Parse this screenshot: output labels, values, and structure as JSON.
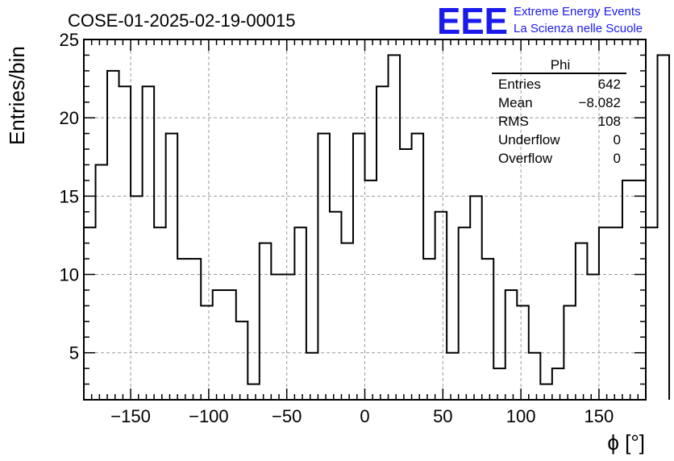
{
  "run_title": "COSE-01-2025-02-19-00015",
  "logo": {
    "mark": "EEE",
    "line1": "Extreme Energy Events",
    "line2": "La Scienza nelle Scuole",
    "color": "#1a1aee"
  },
  "stats_box": {
    "name": "Phi",
    "rows": [
      {
        "label": "Entries",
        "value": "642"
      },
      {
        "label": "Mean",
        "value": "−8.082"
      },
      {
        "label": "RMS",
        "value": "108"
      },
      {
        "label": "Underflow",
        "value": "0"
      },
      {
        "label": "Overflow",
        "value": "0"
      }
    ]
  },
  "chart_data": {
    "type": "bar",
    "style": "step-histogram",
    "xlabel": "ϕ [°]",
    "ylabel": "Entries/bin",
    "xlim": [
      -180,
      180
    ],
    "ylim": [
      2,
      25
    ],
    "xticks": [
      -150,
      -100,
      -50,
      0,
      50,
      100,
      150
    ],
    "yticks": [
      5,
      10,
      15,
      20,
      25
    ],
    "grid": true,
    "bin_width": 7.5,
    "bin_edges_start": -180,
    "values": [
      13,
      17,
      23,
      22,
      15,
      22,
      13,
      19,
      11,
      11,
      8,
      9,
      9,
      7,
      3,
      12,
      10,
      10,
      13,
      5,
      19,
      14,
      12,
      19,
      16,
      22,
      24,
      18,
      19,
      11,
      14,
      5,
      13,
      15,
      11,
      4,
      9,
      8,
      5,
      3,
      4,
      8,
      12,
      10,
      13,
      13,
      16,
      16,
      13,
      24
    ],
    "line_color": "#000000"
  }
}
